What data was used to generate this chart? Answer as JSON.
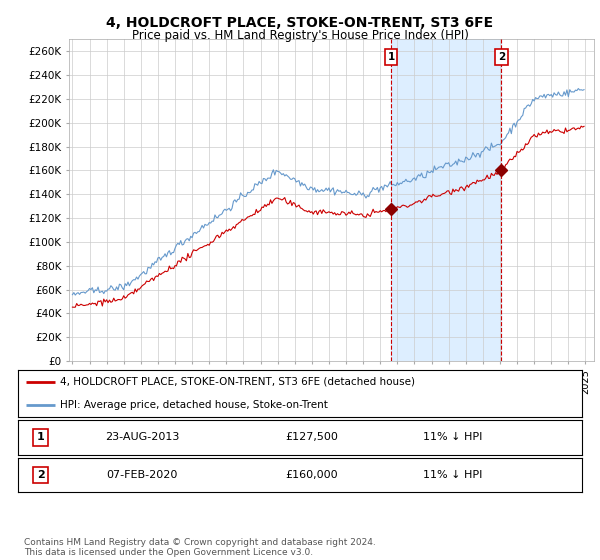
{
  "title": "4, HOLDCROFT PLACE, STOKE-ON-TRENT, ST3 6FE",
  "subtitle": "Price paid vs. HM Land Registry's House Price Index (HPI)",
  "ylabel_ticks": [
    "£0",
    "£20K",
    "£40K",
    "£60K",
    "£80K",
    "£100K",
    "£120K",
    "£140K",
    "£160K",
    "£180K",
    "£200K",
    "£220K",
    "£240K",
    "£260K"
  ],
  "ylim": [
    0,
    270000
  ],
  "yticks": [
    0,
    20000,
    40000,
    60000,
    80000,
    100000,
    120000,
    140000,
    160000,
    180000,
    200000,
    220000,
    240000,
    260000
  ],
  "xlim_start": 1994.8,
  "xlim_end": 2025.5,
  "xticks": [
    1995,
    1996,
    1997,
    1998,
    1999,
    2000,
    2001,
    2002,
    2003,
    2004,
    2005,
    2006,
    2007,
    2008,
    2009,
    2010,
    2011,
    2012,
    2013,
    2014,
    2015,
    2016,
    2017,
    2018,
    2019,
    2020,
    2021,
    2022,
    2023,
    2024,
    2025
  ],
  "hpi_color": "#6699cc",
  "price_color": "#cc0000",
  "marker_color": "#8B0000",
  "vline_color": "#cc0000",
  "shade_color": "#ddeeff",
  "sale1_x": 2013.645,
  "sale1_y": 127500,
  "sale2_x": 2020.09,
  "sale2_y": 160000,
  "sale1_label": "1",
  "sale2_label": "2",
  "legend_line1": "4, HOLDCROFT PLACE, STOKE-ON-TRENT, ST3 6FE (detached house)",
  "legend_line2": "HPI: Average price, detached house, Stoke-on-Trent",
  "table_row1": [
    "1",
    "23-AUG-2013",
    "£127,500",
    "11% ↓ HPI"
  ],
  "table_row2": [
    "2",
    "07-FEB-2020",
    "£160,000",
    "11% ↓ HPI"
  ],
  "footer": "Contains HM Land Registry data © Crown copyright and database right 2024.\nThis data is licensed under the Open Government Licence v3.0.",
  "background_color": "#ffffff",
  "grid_color": "#cccccc"
}
